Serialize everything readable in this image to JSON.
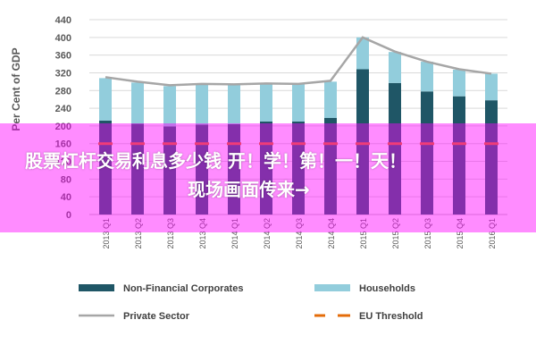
{
  "chart_data": {
    "type": "bar",
    "stacked": true,
    "title": "",
    "xlabel": "",
    "ylabel": "Per Cent of GDP",
    "ylim": [
      0,
      440
    ],
    "yticks": [
      0,
      40,
      80,
      120,
      160,
      200,
      240,
      280,
      320,
      360,
      400,
      440
    ],
    "grid": true,
    "categories": [
      "2013 Q1",
      "2013 Q2",
      "2013 Q3",
      "2013 Q4",
      "2014 Q1",
      "2014 Q2",
      "2014 Q3",
      "2014 Q4",
      "2015 Q1",
      "2015 Q2",
      "2015 Q3",
      "2015 Q4",
      "2016 Q1"
    ],
    "series": [
      {
        "name": "Non-Financial Corporates",
        "kind": "bar",
        "color": "#1f5666",
        "values": [
          212,
          205,
          199,
          203,
          204,
          210,
          210,
          218,
          328,
          297,
          278,
          267,
          258
        ]
      },
      {
        "name": "Households",
        "kind": "bar",
        "color": "#92cddc",
        "values": [
          96,
          93,
          91,
          91,
          89,
          86,
          84,
          82,
          72,
          70,
          67,
          60,
          60
        ]
      },
      {
        "name": "Private Sector",
        "kind": "line",
        "color": "#a6a6a6",
        "values": [
          310,
          300,
          292,
          295,
          294,
          296,
          295,
          302,
          400,
          368,
          345,
          328,
          318
        ]
      },
      {
        "name": "EU Threshold",
        "kind": "dashed-line",
        "color": "#e46c0a",
        "values": [
          160,
          160,
          160,
          160,
          160,
          160,
          160,
          160,
          160,
          160,
          160,
          160,
          160
        ]
      }
    ],
    "legend_position": "bottom"
  },
  "banner": {
    "line1": "股票杠杆交易利息多少钱 开！学！第！一！天！",
    "line2": "现场画面传来→"
  }
}
